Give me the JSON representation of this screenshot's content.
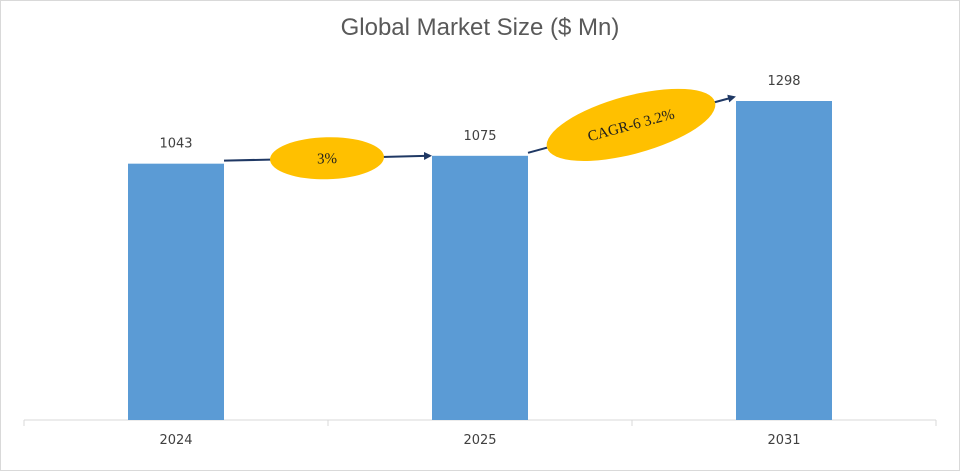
{
  "chart_data": {
    "type": "bar",
    "title": "Global Market Size ($ Mn)",
    "categories": [
      "2024",
      "2025",
      "2031"
    ],
    "values": [
      1043,
      1075,
      1298
    ],
    "ylim": [
      0,
      1298
    ],
    "grid": false,
    "legend": "none",
    "annotations": [
      {
        "text": "3%",
        "from": "2024",
        "to": "2025"
      },
      {
        "text": "CAGR-6 3.2%",
        "from": "2025",
        "to": "2031"
      }
    ],
    "colors": {
      "bar": "#5b9bd5",
      "bubble": "#ffc000",
      "arrow": "#1f3864",
      "axis": "#d9d9d9"
    }
  }
}
